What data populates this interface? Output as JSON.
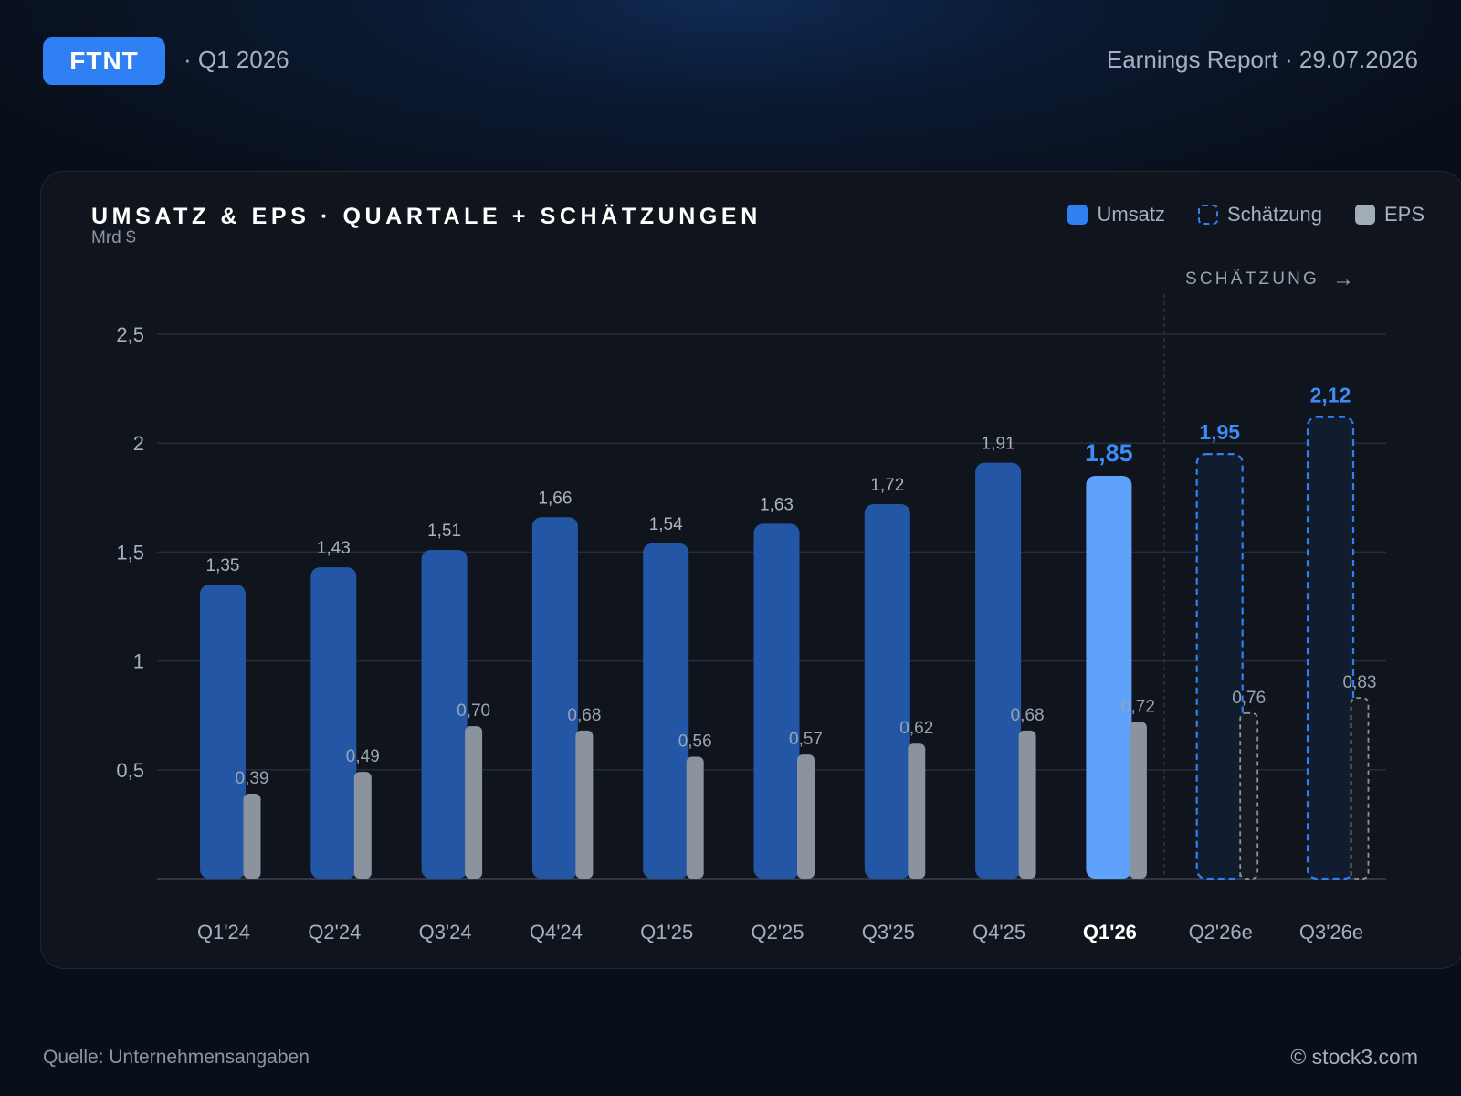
{
  "header": {
    "ticker": "FTNT",
    "period": "· Q1 2026",
    "report": "Earnings Report · 29.07.2026"
  },
  "legend": {
    "revenue": "Umsatz",
    "estimate": "Schätzung",
    "eps": "EPS"
  },
  "estimate_marker": "SCHÄTZUNG",
  "footer": {
    "source": "Quelle: Unternehmensangaben",
    "copyright": "© stock3.com"
  },
  "colors": {
    "revenue": "#2357a6",
    "current": "#5ea2fb",
    "estimate_border": "#2f80f2",
    "eps": "#8b939f"
  },
  "chart_data": {
    "type": "bar",
    "title": "UMSATZ & EPS · QUARTALE + SCHÄTZUNGEN",
    "unit": "Mrd $",
    "categories": [
      "Q1'24",
      "Q2'24",
      "Q3'24",
      "Q4'24",
      "Q1'25",
      "Q2'25",
      "Q3'25",
      "Q4'25",
      "Q1'26",
      "Q2'26e",
      "Q3'26e"
    ],
    "series": [
      {
        "name": "Umsatz",
        "values": [
          1.35,
          1.43,
          1.51,
          1.66,
          1.54,
          1.63,
          1.72,
          1.91,
          1.85,
          1.95,
          2.12
        ],
        "labels": [
          "1,35",
          "1,43",
          "1,51",
          "1,66",
          "1,54",
          "1,63",
          "1,72",
          "1,91",
          "1,85",
          "1,95",
          "2,12"
        ]
      },
      {
        "name": "EPS",
        "values": [
          0.39,
          0.49,
          0.7,
          0.68,
          0.56,
          0.57,
          0.62,
          0.68,
          0.72,
          0.76,
          0.83
        ],
        "labels": [
          "0,39",
          "0,49",
          "0,70",
          "0,68",
          "0,56",
          "0,57",
          "0,62",
          "0,68",
          "0,72",
          "0,76",
          "0,83"
        ]
      }
    ],
    "estimate_categories": [
      "Q2'26e",
      "Q3'26e"
    ],
    "highlight_category": "Q1'26",
    "y_ticks": [
      0.5,
      1,
      1.5,
      2,
      2.5
    ],
    "y_tick_labels": [
      "0,5",
      "1",
      "1,5",
      "2",
      "2,5"
    ],
    "ylim": [
      0,
      2.5
    ],
    "grid": true,
    "legend_position": "top-right"
  }
}
